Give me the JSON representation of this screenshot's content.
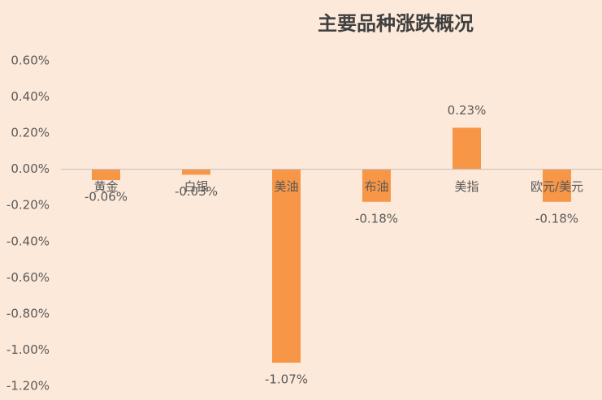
{
  "chart_data": {
    "type": "bar",
    "title": "主要品种涨跌概况",
    "categories": [
      "黄金",
      "白银",
      "美油",
      "布油",
      "美指",
      "欧元/美元"
    ],
    "values": [
      -0.06,
      -0.03,
      -1.07,
      -0.18,
      0.23,
      -0.18
    ],
    "value_labels": [
      "-0.06%",
      "-0.03%",
      "-1.07%",
      "-0.18%",
      "0.23%",
      "-0.18%"
    ],
    "color": "#f79646",
    "ylim": [
      -1.2,
      0.6
    ],
    "yticks": [
      {
        "value": 0.6,
        "label": "0.60%"
      },
      {
        "value": 0.4,
        "label": "0.40%"
      },
      {
        "value": 0.2,
        "label": "0.20%"
      },
      {
        "value": 0,
        "label": "0.00%"
      },
      {
        "value": -0.2,
        "label": "-0.20%"
      },
      {
        "value": -0.4,
        "label": "-0.40%"
      },
      {
        "value": -0.6,
        "label": "-0.60%"
      },
      {
        "value": -0.8,
        "label": "-0.80%"
      },
      {
        "value": -1.0,
        "label": "-1.00%"
      },
      {
        "value": -1.2,
        "label": "-1.20%"
      }
    ],
    "grid": false
  }
}
